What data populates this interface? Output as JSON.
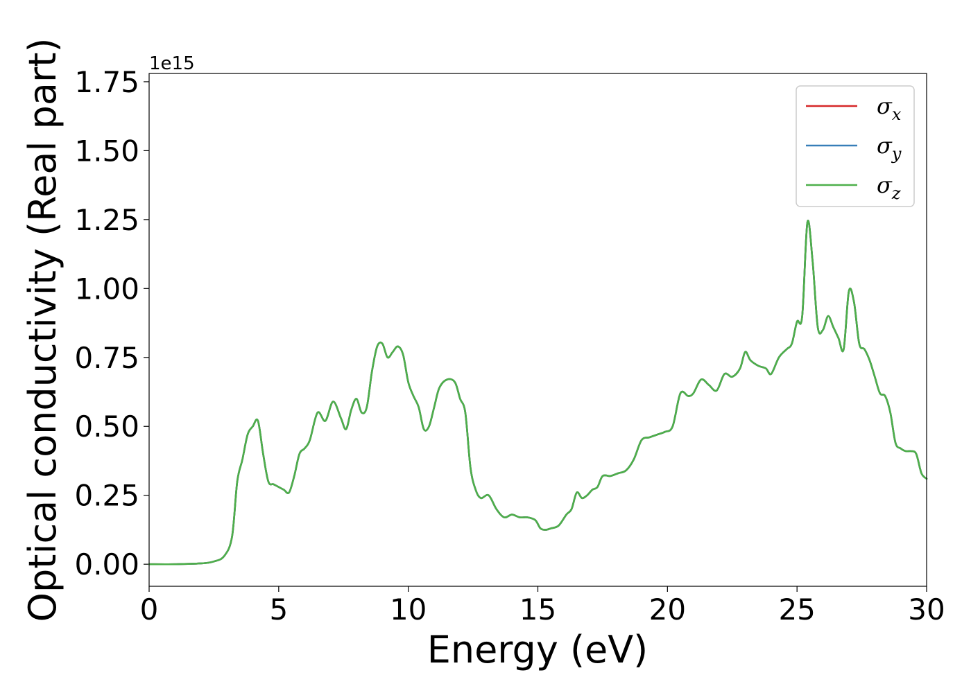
{
  "chart_data": {
    "type": "line",
    "xlabel": "Energy (eV)",
    "ylabel": "Optical conductivity (Real part)",
    "y_offset_label": "1e15",
    "y_multiplier": 1000000000000000.0,
    "xlim": [
      0,
      30
    ],
    "ylim": [
      -0.08,
      1.78
    ],
    "x_ticks": [
      0,
      5,
      10,
      15,
      20,
      25,
      30
    ],
    "x_tick_labels": [
      "0",
      "5",
      "10",
      "15",
      "20",
      "25",
      "30"
    ],
    "y_ticks": [
      0.0,
      0.25,
      0.5,
      0.75,
      1.0,
      1.25,
      1.5,
      1.75
    ],
    "y_tick_labels": [
      "0.00",
      "0.25",
      "0.50",
      "0.75",
      "1.00",
      "1.25",
      "1.50",
      "1.75"
    ],
    "grid": false,
    "legend_position": "top-right",
    "x": [
      0,
      1,
      2,
      2.5,
      2.9,
      3.2,
      3.4,
      3.6,
      3.8,
      4.0,
      4.2,
      4.4,
      4.6,
      4.8,
      5.0,
      5.2,
      5.4,
      5.6,
      5.8,
      6.0,
      6.2,
      6.5,
      6.8,
      7.1,
      7.4,
      7.6,
      7.8,
      8.0,
      8.2,
      8.4,
      8.6,
      8.8,
      9.0,
      9.2,
      9.4,
      9.6,
      9.8,
      10.0,
      10.2,
      10.4,
      10.6,
      10.8,
      11.0,
      11.2,
      11.5,
      11.8,
      12.0,
      12.2,
      12.4,
      12.6,
      12.8,
      13.1,
      13.4,
      13.7,
      14.0,
      14.3,
      14.6,
      14.9,
      15.1,
      15.3,
      15.5,
      15.8,
      16.1,
      16.3,
      16.5,
      16.7,
      16.9,
      17.1,
      17.3,
      17.5,
      17.8,
      18.1,
      18.4,
      18.7,
      19.0,
      19.3,
      19.6,
      19.9,
      20.2,
      20.5,
      20.8,
      21.0,
      21.3,
      21.6,
      21.9,
      22.2,
      22.5,
      22.8,
      23.0,
      23.2,
      23.5,
      23.8,
      24.0,
      24.3,
      24.6,
      24.8,
      25.0,
      25.2,
      25.4,
      25.6,
      25.8,
      26.0,
      26.2,
      26.4,
      26.6,
      26.8,
      27.0,
      27.2,
      27.4,
      27.6,
      27.8,
      28.0,
      28.2,
      28.4,
      28.6,
      28.8,
      29.0,
      29.2,
      29.4,
      29.6,
      29.8,
      30.0
    ],
    "series": [
      {
        "name": "σx",
        "color": "#d62728",
        "values": [
          0.0,
          0.0,
          0.003,
          0.01,
          0.03,
          0.1,
          0.3,
          0.38,
          0.47,
          0.5,
          0.52,
          0.4,
          0.3,
          0.29,
          0.28,
          0.27,
          0.26,
          0.32,
          0.4,
          0.42,
          0.45,
          0.55,
          0.52,
          0.59,
          0.53,
          0.49,
          0.56,
          0.6,
          0.55,
          0.57,
          0.7,
          0.79,
          0.8,
          0.75,
          0.77,
          0.79,
          0.76,
          0.66,
          0.61,
          0.57,
          0.49,
          0.5,
          0.57,
          0.64,
          0.67,
          0.66,
          0.6,
          0.55,
          0.35,
          0.27,
          0.24,
          0.25,
          0.2,
          0.17,
          0.18,
          0.17,
          0.17,
          0.16,
          0.13,
          0.125,
          0.13,
          0.14,
          0.18,
          0.2,
          0.26,
          0.24,
          0.25,
          0.27,
          0.28,
          0.32,
          0.32,
          0.33,
          0.34,
          0.38,
          0.45,
          0.46,
          0.47,
          0.48,
          0.5,
          0.62,
          0.61,
          0.62,
          0.67,
          0.65,
          0.63,
          0.69,
          0.68,
          0.71,
          0.77,
          0.74,
          0.72,
          0.71,
          0.69,
          0.75,
          0.78,
          0.8,
          0.88,
          0.9,
          1.24,
          1.1,
          0.86,
          0.85,
          0.9,
          0.86,
          0.82,
          0.78,
          0.99,
          0.95,
          0.8,
          0.78,
          0.74,
          0.68,
          0.62,
          0.61,
          0.55,
          0.44,
          0.42,
          0.41,
          0.41,
          0.4,
          0.33,
          0.31
        ]
      },
      {
        "name": "σy",
        "color": "#377eb8",
        "values": [
          0.0,
          0.0,
          0.003,
          0.01,
          0.03,
          0.1,
          0.3,
          0.38,
          0.47,
          0.5,
          0.52,
          0.4,
          0.3,
          0.29,
          0.28,
          0.27,
          0.26,
          0.32,
          0.4,
          0.42,
          0.45,
          0.55,
          0.52,
          0.59,
          0.53,
          0.49,
          0.56,
          0.6,
          0.55,
          0.57,
          0.7,
          0.79,
          0.8,
          0.75,
          0.77,
          0.79,
          0.76,
          0.66,
          0.61,
          0.57,
          0.49,
          0.5,
          0.57,
          0.64,
          0.67,
          0.66,
          0.6,
          0.55,
          0.35,
          0.27,
          0.24,
          0.25,
          0.2,
          0.17,
          0.18,
          0.17,
          0.17,
          0.16,
          0.13,
          0.125,
          0.13,
          0.14,
          0.18,
          0.2,
          0.26,
          0.24,
          0.25,
          0.27,
          0.28,
          0.32,
          0.32,
          0.33,
          0.34,
          0.38,
          0.45,
          0.46,
          0.47,
          0.48,
          0.5,
          0.62,
          0.61,
          0.62,
          0.67,
          0.65,
          0.63,
          0.69,
          0.68,
          0.71,
          0.77,
          0.74,
          0.72,
          0.71,
          0.69,
          0.75,
          0.78,
          0.8,
          0.88,
          0.9,
          1.24,
          1.1,
          0.86,
          0.85,
          0.9,
          0.86,
          0.82,
          0.78,
          0.99,
          0.95,
          0.8,
          0.78,
          0.74,
          0.68,
          0.62,
          0.61,
          0.55,
          0.44,
          0.42,
          0.41,
          0.41,
          0.4,
          0.33,
          0.31
        ]
      },
      {
        "name": "σz",
        "color": "#4daf4a",
        "values": [
          0.0,
          0.0,
          0.003,
          0.01,
          0.03,
          0.1,
          0.3,
          0.38,
          0.47,
          0.5,
          0.52,
          0.4,
          0.3,
          0.29,
          0.28,
          0.27,
          0.26,
          0.32,
          0.4,
          0.42,
          0.45,
          0.55,
          0.52,
          0.59,
          0.53,
          0.49,
          0.56,
          0.6,
          0.55,
          0.57,
          0.7,
          0.79,
          0.8,
          0.75,
          0.77,
          0.79,
          0.76,
          0.66,
          0.61,
          0.57,
          0.49,
          0.5,
          0.57,
          0.64,
          0.67,
          0.66,
          0.6,
          0.55,
          0.35,
          0.27,
          0.24,
          0.25,
          0.2,
          0.17,
          0.18,
          0.17,
          0.17,
          0.16,
          0.13,
          0.125,
          0.13,
          0.14,
          0.18,
          0.2,
          0.26,
          0.24,
          0.25,
          0.27,
          0.28,
          0.32,
          0.32,
          0.33,
          0.34,
          0.38,
          0.45,
          0.46,
          0.47,
          0.48,
          0.5,
          0.62,
          0.61,
          0.62,
          0.67,
          0.65,
          0.63,
          0.69,
          0.68,
          0.71,
          0.77,
          0.74,
          0.72,
          0.71,
          0.69,
          0.75,
          0.78,
          0.8,
          0.88,
          0.9,
          1.24,
          1.1,
          0.86,
          0.85,
          0.9,
          0.86,
          0.82,
          0.78,
          0.99,
          0.95,
          0.8,
          0.78,
          0.74,
          0.68,
          0.62,
          0.61,
          0.55,
          0.44,
          0.42,
          0.41,
          0.41,
          0.4,
          0.33,
          0.31
        ]
      }
    ],
    "legend": [
      {
        "symbol": "σ",
        "sub": "x",
        "color": "#d62728"
      },
      {
        "symbol": "σ",
        "sub": "y",
        "color": "#377eb8"
      },
      {
        "symbol": "σ",
        "sub": "z",
        "color": "#4daf4a"
      }
    ]
  }
}
